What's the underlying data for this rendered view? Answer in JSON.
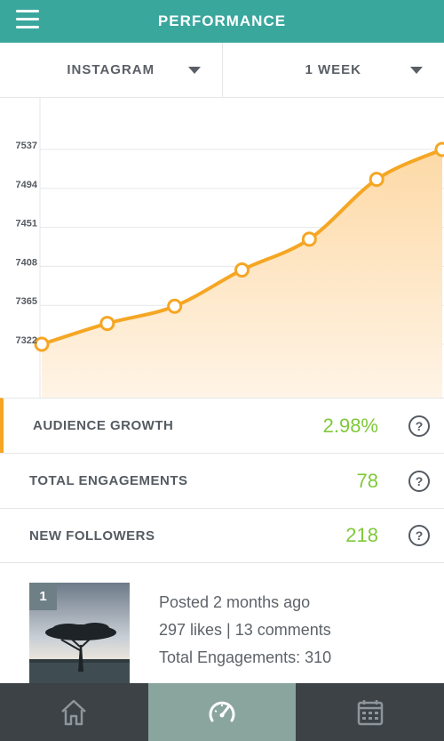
{
  "header": {
    "title": "PERFORMANCE",
    "menu_icon": "hamburger-icon"
  },
  "filters": {
    "network": "INSTAGRAM",
    "period": "1 WEEK"
  },
  "chart_data": {
    "type": "area",
    "y_ticks": [
      "7537",
      "7494",
      "7451",
      "7408",
      "7365",
      "7322"
    ],
    "ylim": [
      7322,
      7537
    ],
    "values": [
      7322,
      7345,
      7364,
      7404,
      7438,
      7504,
      7537
    ],
    "line_color": "#f5a623",
    "fill_color": "#fde3bd"
  },
  "metrics": [
    {
      "label": "AUDIENCE GROWTH",
      "value": "2.98%",
      "active": true
    },
    {
      "label": "TOTAL ENGAGEMENTS",
      "value": "78"
    },
    {
      "label": "NEW FOLLOWERS",
      "value": "218"
    }
  ],
  "help_symbol": "?",
  "post": {
    "rank": "1",
    "posted": "Posted 2 months ago",
    "stats": "297 likes | 13 comments",
    "engagements": "Total Engagements: 310"
  },
  "nav": [
    {
      "name": "home-icon",
      "active": false
    },
    {
      "name": "speedometer-icon",
      "active": true
    },
    {
      "name": "calendar-icon",
      "active": false
    }
  ],
  "colors": {
    "accent": "#3aa79d",
    "positive": "#7fc93a",
    "highlight": "#f5a623"
  }
}
